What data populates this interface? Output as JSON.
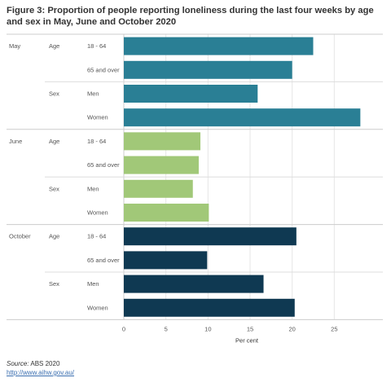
{
  "chart_data": {
    "type": "bar",
    "orientation": "horizontal",
    "title": "Figure 3: Proportion of people reporting loneliness during the last four weeks by age and sex in May, June and October 2020",
    "xlabel": "Per cent",
    "xlim": [
      0,
      30
    ],
    "xticks": [
      0,
      5,
      10,
      15,
      20,
      25
    ],
    "grid": true,
    "groups": [
      {
        "month": "May",
        "color": "#2a7f95",
        "subgroups": [
          {
            "name": "Age",
            "categories": [
              "18 - 64",
              "65 and over"
            ],
            "values": [
              22.5,
              20.0
            ]
          },
          {
            "name": "Sex",
            "categories": [
              "Men",
              "Women"
            ],
            "values": [
              15.9,
              28.1
            ]
          }
        ]
      },
      {
        "month": "June",
        "color": "#a1c878",
        "subgroups": [
          {
            "name": "Age",
            "categories": [
              "18 - 64",
              "65 and over"
            ],
            "values": [
              9.1,
              8.9
            ]
          },
          {
            "name": "Sex",
            "categories": [
              "Men",
              "Women"
            ],
            "values": [
              8.2,
              10.1
            ]
          }
        ]
      },
      {
        "month": "October",
        "color": "#0f3952",
        "subgroups": [
          {
            "name": "Age",
            "categories": [
              "18 - 64",
              "65 and over"
            ],
            "values": [
              20.5,
              9.9
            ]
          },
          {
            "name": "Sex",
            "categories": [
              "Men",
              "Women"
            ],
            "values": [
              16.6,
              20.3
            ]
          }
        ]
      }
    ]
  },
  "footer": {
    "source_label": "Source:",
    "source_value": "ABS 2020",
    "link": "http://www.aihw.gov.au/"
  }
}
